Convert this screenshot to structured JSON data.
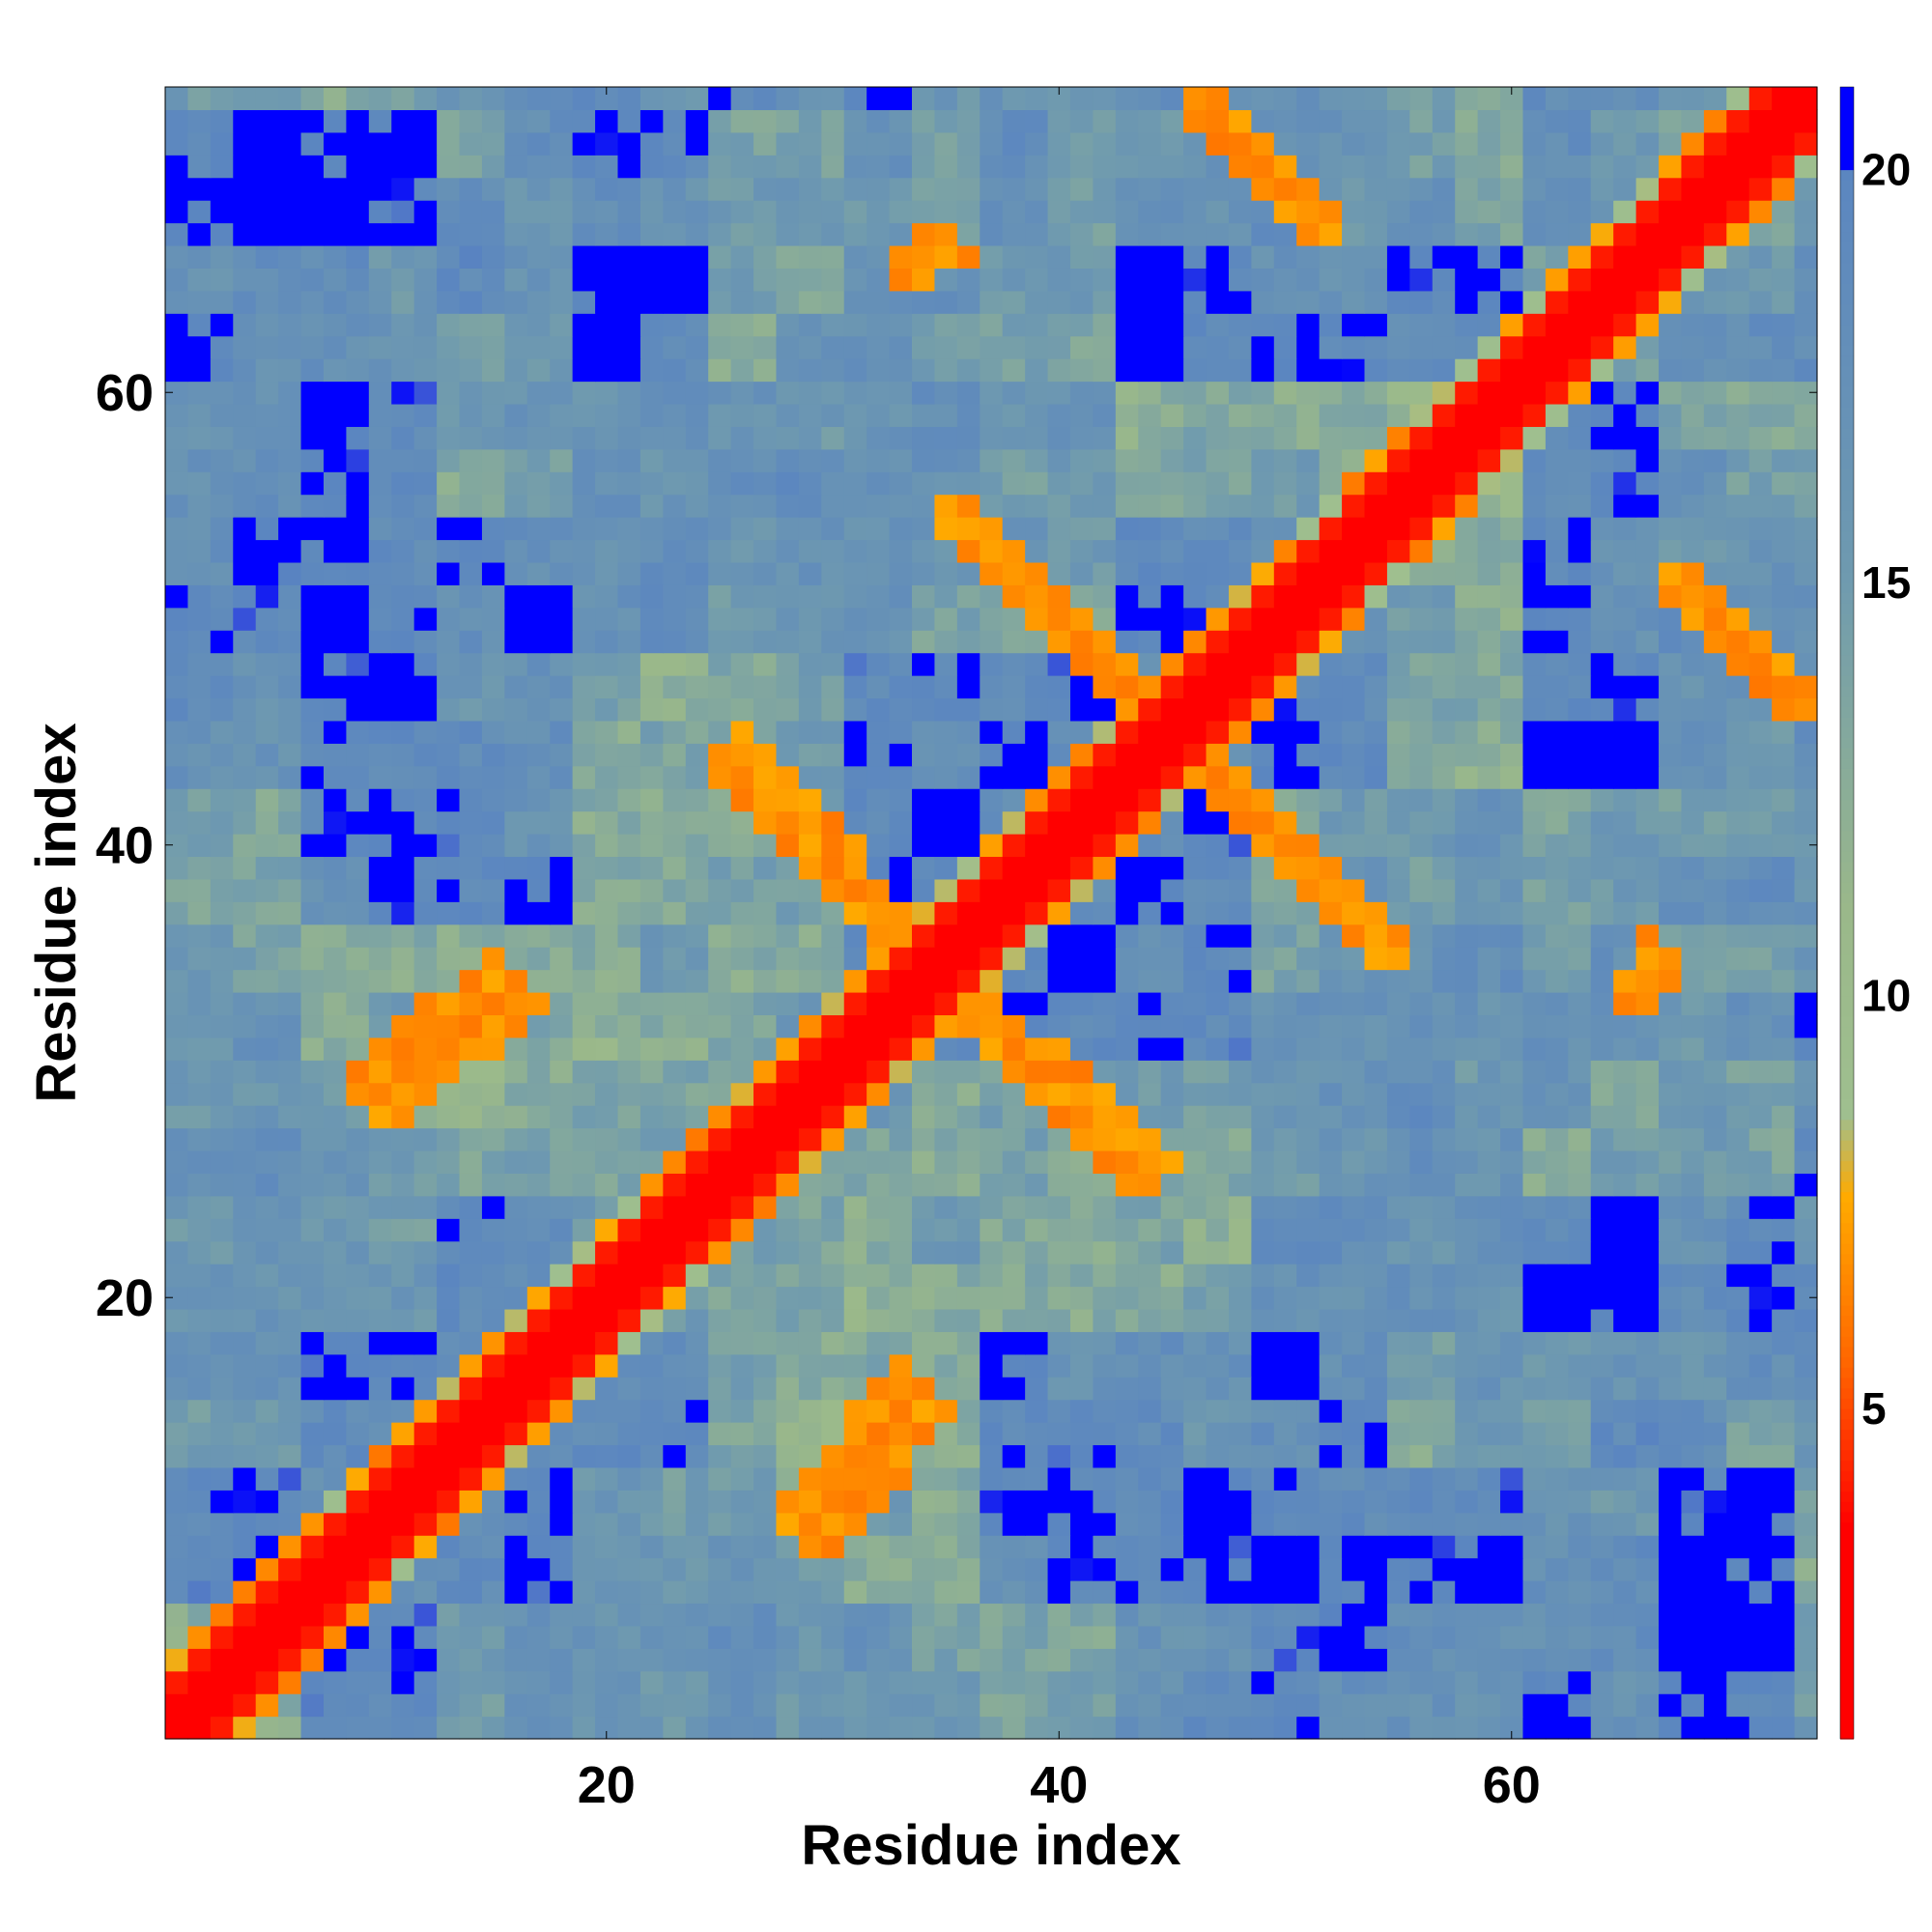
{
  "chart_data": {
    "type": "heatmap",
    "title": "",
    "xlabel": "Residue index",
    "ylabel": "Residue index",
    "n_residues": 73,
    "xlim": [
      1,
      73
    ],
    "ylim": [
      1,
      73
    ],
    "x_ticks": [
      20,
      40,
      60
    ],
    "y_ticks": [
      20,
      40,
      60
    ],
    "colorbar": {
      "range": [
        1,
        21
      ],
      "ticks": [
        5,
        10,
        15,
        20
      ],
      "stops": [
        {
          "value": 1,
          "color": "#ff0000"
        },
        {
          "value": 3.5,
          "color": "#ff0000"
        },
        {
          "value": 5.5,
          "color": "#ff6600"
        },
        {
          "value": 7.5,
          "color": "#ffaa00"
        },
        {
          "value": 8.5,
          "color": "#9fbf8f"
        },
        {
          "value": 11,
          "color": "#9ab88a"
        },
        {
          "value": 15,
          "color": "#6f9aaf"
        },
        {
          "value": 19.9,
          "color": "#5b86c0"
        },
        {
          "value": 20,
          "color": "#0000ff"
        },
        {
          "value": 21,
          "color": "#0000ff"
        }
      ]
    },
    "contact_features": [
      {
        "kind": "diagonal",
        "description": "main diagonal",
        "distance": 1
      },
      {
        "kind": "near_diagonal",
        "offset": 1,
        "distance": 3
      },
      {
        "kind": "near_diagonal",
        "offset": 2,
        "distance": 5
      },
      {
        "kind": "anti_diagonal_contacts",
        "from": [
          1,
          1
        ],
        "segments": [
          {
            "x0": 44,
            "y0": 45,
            "x1": 54,
            "y1": 35,
            "distance": 6
          },
          {
            "x0": 26,
            "y0": 44,
            "x1": 34,
            "y1": 35,
            "distance": 6
          },
          {
            "x0": 36,
            "y0": 54,
            "x1": 44,
            "y1": 46,
            "distance": 6
          },
          {
            "x0": 34,
            "y0": 34,
            "x1": 43,
            "y1": 25,
            "distance": 6
          },
          {
            "x0": 9,
            "y0": 29,
            "x1": 15,
            "y1": 34,
            "distance": 6
          },
          {
            "x0": 28,
            "y0": 10,
            "x1": 33,
            "y1": 16,
            "distance": 6
          },
          {
            "x0": 46,
            "y0": 73,
            "x1": 51,
            "y1": 68,
            "distance": 6
          },
          {
            "x0": 67,
            "y0": 51,
            "x1": 72,
            "y1": 46,
            "distance": 6
          },
          {
            "x0": 65,
            "y0": 33,
            "x1": 66,
            "y1": 35,
            "distance": 6
          }
        ]
      }
    ]
  }
}
